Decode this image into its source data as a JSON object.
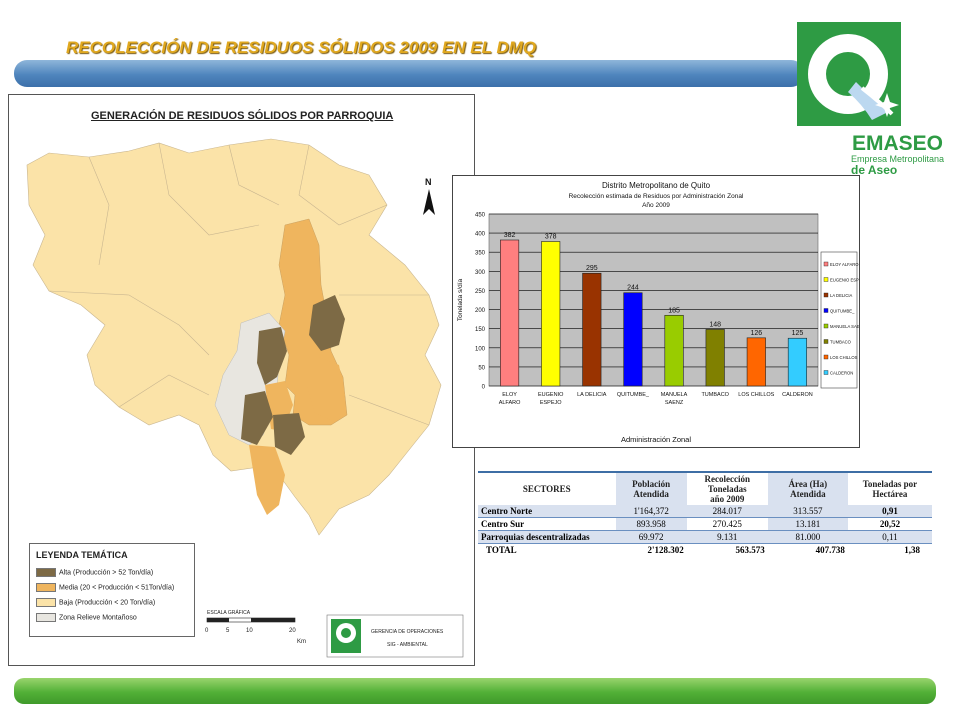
{
  "slide": {
    "title": "RECOLECCIÓN DE RESIDUOS SÓLIDOS 2009  EN EL DMQ"
  },
  "logo": {
    "name": "EMASEO",
    "line1": "Empresa Metropolitana",
    "line2": "de Aseo",
    "color": "#2e9b44"
  },
  "map": {
    "title": "GENERACIÓN DE RESIDUOS SÓLIDOS POR PARROQUIA",
    "north_label": "N",
    "legend_title": "LEYENDA TEMÁTICA",
    "legend": [
      {
        "label": "Alta (Producción > 52 Ton/día)",
        "color": "#7d6a45"
      },
      {
        "label": "Media (20 < Producción < 51Ton/día)",
        "color": "#efb55e"
      },
      {
        "label": "Baja (Producción < 20 Ton/día)",
        "color": "#fbe3a8"
      },
      {
        "label": "Zona Relieve Montañoso",
        "color": "#e8e6e0"
      }
    ],
    "scale_title": "ESCALA GRÁFICA",
    "scale_ticks": [
      "0",
      "5",
      "10",
      "20"
    ],
    "scale_unit": "Km",
    "credit_line1": "GERENCIA DE OPERACIONES",
    "credit_line2": "SIG - AMBIENTAL"
  },
  "chart_data": {
    "type": "bar",
    "title": "Distrito Metropolitano de Quito",
    "subtitle": "Recolección estimada de Residuos por Administración Zonal",
    "subtitle2": "Año 2009",
    "xlabel": "Administración Zonal",
    "ylabel": "Tonelada s/día",
    "ylim": [
      0,
      450
    ],
    "yticks": [
      0,
      50,
      100,
      150,
      200,
      250,
      300,
      350,
      400,
      450
    ],
    "grid": true,
    "legend_position": "right",
    "categories": [
      {
        "line1": "ELOY",
        "line2": "ALFARO"
      },
      {
        "line1": "EUGENIO",
        "line2": "ESPEJO"
      },
      {
        "line1": "LA DELICIA",
        "line2": ""
      },
      {
        "line1": "QUITUMBE_",
        "line2": ""
      },
      {
        "line1": "MANUELA",
        "line2": "SAENZ"
      },
      {
        "line1": "TUMBACO",
        "line2": ""
      },
      {
        "line1": "LOS CHILLOS",
        "line2": ""
      },
      {
        "line1": "CALDERON",
        "line2": ""
      }
    ],
    "values": [
      382,
      378,
      295,
      244,
      185,
      148,
      126,
      125
    ],
    "colors": [
      "#ff7f7f",
      "#ffff00",
      "#993300",
      "#0000ff",
      "#99cc00",
      "#808000",
      "#ff6600",
      "#33ccff"
    ],
    "legend": [
      "ELOY ALFARO",
      "EUGENIO ESPEJO",
      "LA DELICIA",
      "QUITUMBE_",
      "MANUELA SAENZ",
      "TUMBACO",
      "LOS CHILLOS",
      "CALDERON"
    ]
  },
  "table": {
    "headers": [
      {
        "lines": [
          "SECTORES"
        ]
      },
      {
        "lines": [
          "Población",
          "Atendida"
        ]
      },
      {
        "lines": [
          "Recolección",
          "Toneladas",
          "año 2009"
        ]
      },
      {
        "lines": [
          "Área (Ha)",
          "Atendida"
        ]
      },
      {
        "lines": [
          "Toneladas por",
          "Hectárea"
        ]
      }
    ],
    "rows": [
      {
        "sector": "Centro Norte",
        "poblacion": "1'164,372",
        "recoleccion": "284.017",
        "area": "313.557",
        "ton_ha": "0,91"
      },
      {
        "sector": "Centro Sur",
        "poblacion": "893.958",
        "recoleccion": "270.425",
        "area": "13.181",
        "ton_ha": "20,52"
      },
      {
        "sector": "Parroquias descentralizadas",
        "poblacion": "69.972",
        "recoleccion": "9.131",
        "area": "81.000",
        "ton_ha": "0,11"
      }
    ],
    "total": {
      "sector": "TOTAL",
      "poblacion": "2'128.302",
      "recoleccion": "563.573",
      "area": "407.738",
      "ton_ha": "1,38"
    }
  }
}
